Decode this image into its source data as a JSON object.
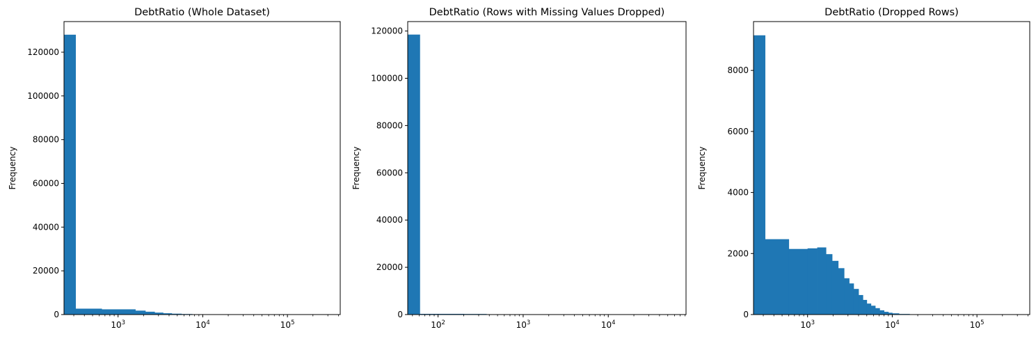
{
  "chart_data": [
    {
      "type": "bar",
      "title": "DebtRatio (Whole Dataset)",
      "xlabel": "",
      "ylabel": "Frequency",
      "xscale": "log",
      "color": "#1f77b4",
      "xlim": [
        230,
        420000
      ],
      "ylim": [
        0,
        134000
      ],
      "yticks": [
        "0",
        "20000",
        "40000",
        "60000",
        "80000",
        "100000",
        "120000"
      ],
      "xticks": [
        {
          "base": "10",
          "exp": "3"
        },
        {
          "base": "10",
          "exp": "4"
        },
        {
          "base": "10",
          "exp": "5"
        }
      ],
      "bars": [
        {
          "x0": 230,
          "x1": 315,
          "value": 128000
        },
        {
          "x0": 315,
          "x1": 640,
          "value": 2700
        },
        {
          "x0": 640,
          "x1": 1600,
          "value": 2400
        },
        {
          "x0": 1600,
          "x1": 2100,
          "value": 1800
        },
        {
          "x0": 2100,
          "x1": 2700,
          "value": 1300
        },
        {
          "x0": 2700,
          "x1": 3400,
          "value": 900
        },
        {
          "x0": 3400,
          "x1": 4300,
          "value": 600
        },
        {
          "x0": 4300,
          "x1": 5600,
          "value": 400
        },
        {
          "x0": 5600,
          "x1": 7500,
          "value": 250
        },
        {
          "x0": 7500,
          "x1": 10000,
          "value": 120
        },
        {
          "x0": 10000,
          "x1": 14000,
          "value": 60
        },
        {
          "x0": 14000,
          "x1": 330000,
          "value": 10
        }
      ]
    },
    {
      "type": "bar",
      "title": "DebtRatio (Rows with Missing Values Dropped)",
      "xlabel": "",
      "ylabel": "Frequency",
      "xscale": "log",
      "color": "#1f77b4",
      "xlim": [
        44,
        82000
      ],
      "ylim": [
        0,
        124000
      ],
      "yticks": [
        "0",
        "20000",
        "40000",
        "60000",
        "80000",
        "100000",
        "120000"
      ],
      "xticks": [
        {
          "base": "10",
          "exp": "2"
        },
        {
          "base": "10",
          "exp": "3"
        },
        {
          "base": "10",
          "exp": "4"
        }
      ],
      "bars": [
        {
          "x0": 44,
          "x1": 61,
          "value": 118500
        },
        {
          "x0": 61,
          "x1": 200,
          "value": 300
        },
        {
          "x0": 200,
          "x1": 370,
          "value": 250
        },
        {
          "x0": 370,
          "x1": 1000,
          "value": 30
        },
        {
          "x0": 1000,
          "x1": 60000,
          "value": 5
        }
      ]
    },
    {
      "type": "bar",
      "title": "DebtRatio (Dropped Rows)",
      "xlabel": "",
      "ylabel": "Frequency",
      "xscale": "log",
      "color": "#1f77b4",
      "xlim": [
        230,
        420000
      ],
      "ylim": [
        0,
        9600
      ],
      "yticks": [
        "0",
        "2000",
        "4000",
        "6000",
        "8000"
      ],
      "xticks": [
        {
          "base": "10",
          "exp": "3"
        },
        {
          "base": "10",
          "exp": "4"
        },
        {
          "base": "10",
          "exp": "5"
        }
      ],
      "bars": [
        {
          "x0": 230,
          "x1": 315,
          "value": 9150
        },
        {
          "x0": 315,
          "x1": 600,
          "value": 2470
        },
        {
          "x0": 600,
          "x1": 1000,
          "value": 2150
        },
        {
          "x0": 1000,
          "x1": 1300,
          "value": 2170
        },
        {
          "x0": 1300,
          "x1": 1650,
          "value": 2200
        },
        {
          "x0": 1650,
          "x1": 1950,
          "value": 1980
        },
        {
          "x0": 1950,
          "x1": 2300,
          "value": 1760
        },
        {
          "x0": 2300,
          "x1": 2700,
          "value": 1520
        },
        {
          "x0": 2700,
          "x1": 3100,
          "value": 1190
        },
        {
          "x0": 3100,
          "x1": 3500,
          "value": 1020
        },
        {
          "x0": 3500,
          "x1": 4000,
          "value": 840
        },
        {
          "x0": 4000,
          "x1": 4500,
          "value": 640
        },
        {
          "x0": 4500,
          "x1": 5000,
          "value": 480
        },
        {
          "x0": 5000,
          "x1": 5600,
          "value": 360
        },
        {
          "x0": 5600,
          "x1": 6300,
          "value": 290
        },
        {
          "x0": 6300,
          "x1": 7100,
          "value": 210
        },
        {
          "x0": 7100,
          "x1": 8000,
          "value": 140
        },
        {
          "x0": 8000,
          "x1": 9000,
          "value": 90
        },
        {
          "x0": 9000,
          "x1": 10000,
          "value": 60
        },
        {
          "x0": 10000,
          "x1": 12000,
          "value": 40
        },
        {
          "x0": 12000,
          "x1": 16000,
          "value": 20
        },
        {
          "x0": 16000,
          "x1": 330000,
          "value": 5
        }
      ]
    }
  ]
}
